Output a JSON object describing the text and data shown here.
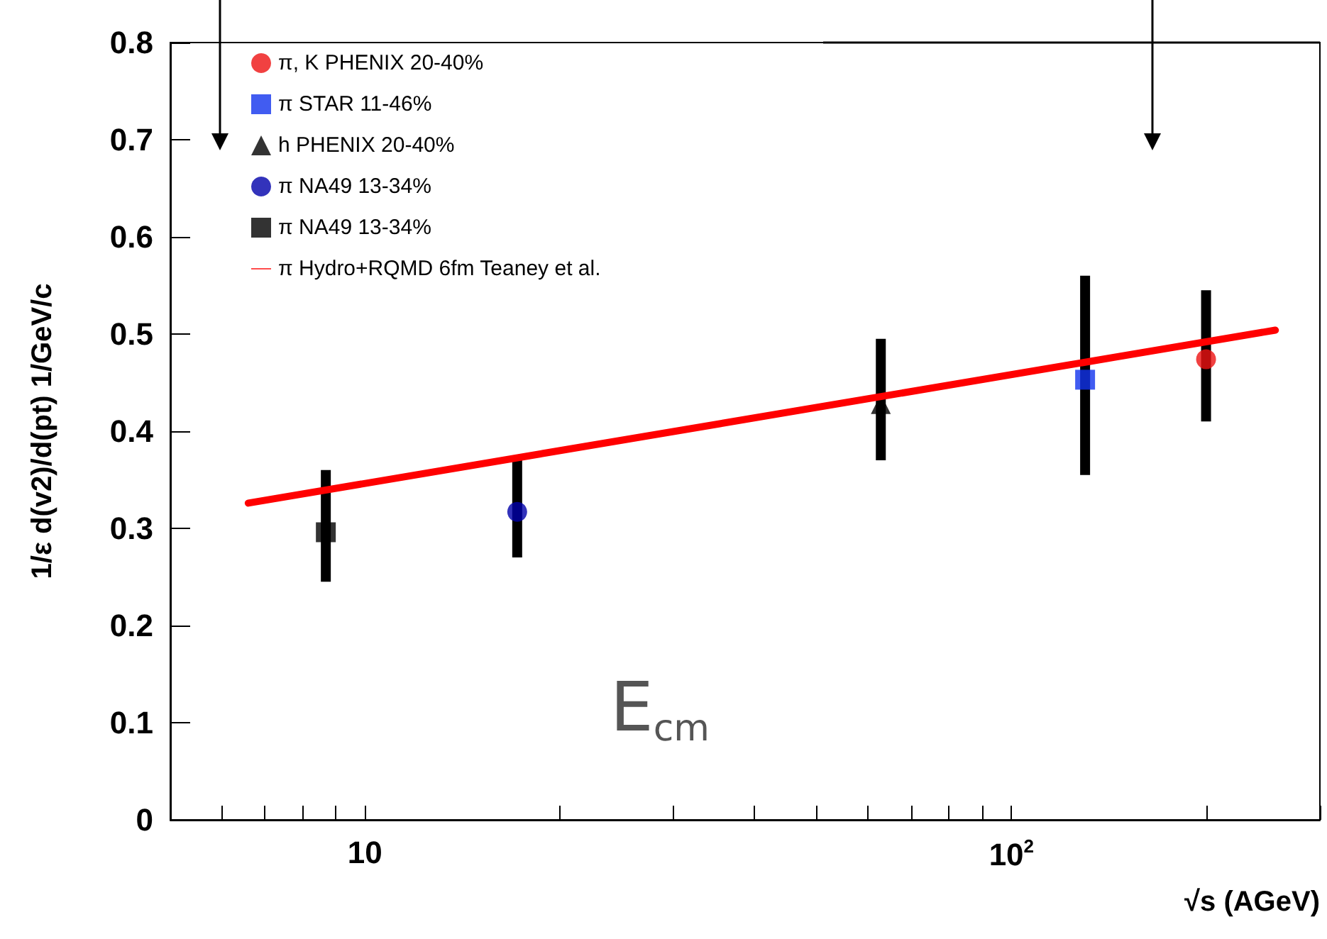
{
  "chart_data": {
    "type": "scatter",
    "ylabel": "1/ε d(v2)/d(pt) 1/GeV/c",
    "xlabel": "√s (AGeV)",
    "log": "x",
    "xlim": [
      5,
      300
    ],
    "ylim": [
      0,
      0.8
    ],
    "xticks": [
      {
        "value": 6,
        "label": null
      },
      {
        "value": 7,
        "label": null
      },
      {
        "value": 8,
        "label": null
      },
      {
        "value": 9,
        "label": null
      },
      {
        "value": 10,
        "label": "10"
      },
      {
        "value": 20,
        "label": null
      },
      {
        "value": 30,
        "label": null
      },
      {
        "value": 40,
        "label": null
      },
      {
        "value": 50,
        "label": null
      },
      {
        "value": 60,
        "label": null
      },
      {
        "value": 70,
        "label": null
      },
      {
        "value": 80,
        "label": null
      },
      {
        "value": 90,
        "label": null
      },
      {
        "value": 100,
        "label": "10$^{2}$"
      },
      {
        "value": 200,
        "label": null
      },
      {
        "value": 300,
        "label": null
      }
    ],
    "yticks": [
      0,
      0.1,
      0.2,
      0.3,
      0.4,
      0.5,
      0.6,
      0.7,
      0.8
    ],
    "grid": false,
    "legend": "top left",
    "series": [
      {
        "name": "π, K PHENIX 20-40%",
        "color": "#ee1111",
        "marker": "circle",
        "x": [
          200
        ],
        "values": [
          0.474
        ],
        "errors": [
          [
            0.41,
            0.545
          ]
        ]
      },
      {
        "name": "π STAR 11-46%",
        "color": "#1133ee",
        "marker": "square",
        "x": [
          130
        ],
        "values": [
          0.453
        ],
        "errors": [
          [
            0.355,
            0.56
          ]
        ]
      },
      {
        "name": "h PHENIX 20-40%",
        "color": "#000000",
        "marker": "triangle",
        "x": [
          62.8
        ],
        "values": [
          0.428
        ],
        "errors": [
          [
            0.37,
            0.495
          ]
        ]
      },
      {
        "name": "π NA49 13-34%",
        "color": "#0000aa",
        "marker": "circle",
        "x": [
          17.2
        ],
        "values": [
          0.317
        ],
        "errors": [
          [
            0.27,
            0.375
          ]
        ]
      },
      {
        "name": "π NA49 13-34%",
        "color": "#000000",
        "marker": "square",
        "x": [
          8.7
        ],
        "values": [
          0.296
        ],
        "errors": [
          [
            0.245,
            0.36
          ]
        ]
      },
      {
        "name": "π Hydro+RQMD 6fm Teaney et al.",
        "type": "line",
        "color": "#ff0000",
        "marker": "none",
        "line_style": "solid",
        "x": [
          6.6,
          256
        ],
        "values": [
          0.326,
          0.504
        ]
      }
    ],
    "annotations": [
      "E$_{cm}$"
    ]
  }
}
